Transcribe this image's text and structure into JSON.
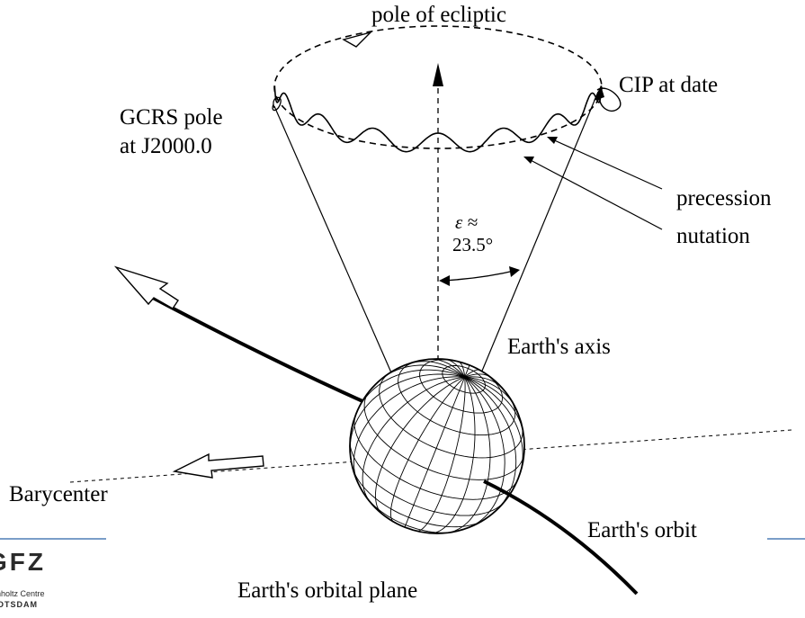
{
  "labels": {
    "pole_of_ecliptic": "pole of ecliptic",
    "cip_at_date": "CIP at date",
    "gcrs_pole_line1": "GCRS pole",
    "gcrs_pole_line2": "at J2000.0",
    "precession": "precession",
    "nutation": "nutation",
    "epsilon_line1": "ε ≈",
    "epsilon_line2": "23.5°",
    "earths_axis": "Earth's axis",
    "barycenter": "Barycenter",
    "earths_orbit": "Earth's orbit",
    "earths_orbital_plane": "Earth's orbital plane"
  },
  "logo": {
    "main": "GFZ",
    "sub_line1": "Helmholtz Centre",
    "sub_line2": "POTSDAM"
  },
  "colors": {
    "ink": "#000000",
    "divider": "#4f7fb5",
    "background": "#ffffff"
  }
}
